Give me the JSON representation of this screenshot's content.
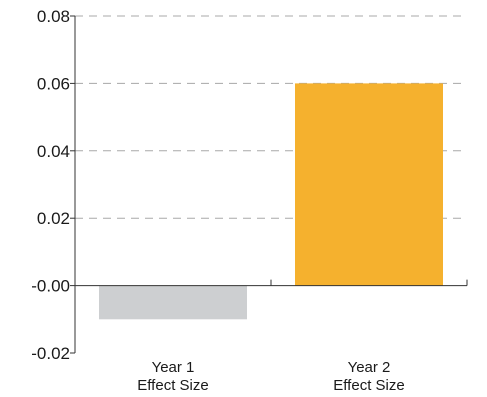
{
  "chart_data": {
    "type": "bar",
    "categories": [
      [
        "Year 1",
        "Effect Size"
      ],
      [
        "Year 2",
        "Effect Size"
      ]
    ],
    "values": [
      -0.01,
      0.06
    ],
    "colors": [
      "#cdcfd1",
      "#f5b12e"
    ],
    "ylim": [
      -0.02,
      0.08
    ],
    "yticks": [
      0.08,
      0.06,
      0.04,
      0.02,
      0.0,
      -0.02
    ],
    "ytick_labels": [
      "0.08",
      "0.06",
      "0.04",
      "0.02",
      "-0.00",
      "-0.02"
    ],
    "grid": "dashed-horizontal",
    "title": "",
    "xlabel": "",
    "ylabel": ""
  }
}
